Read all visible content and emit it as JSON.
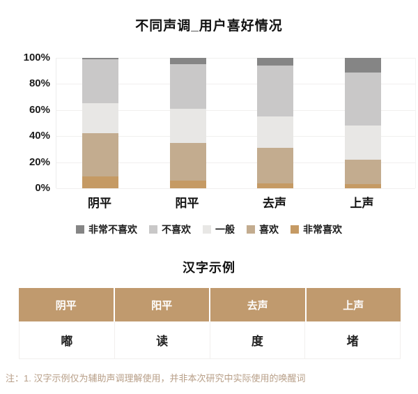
{
  "page": {
    "background": "#ffffff"
  },
  "chart_data": {
    "type": "bar",
    "subtype": "stacked-100-percent",
    "title": "不同声调_用户喜好情况",
    "categories": [
      "阴平",
      "阳平",
      "去声",
      "上声"
    ],
    "series": [
      {
        "name": "非常喜欢",
        "color": "#c59a64",
        "values": [
          9,
          6,
          4,
          3
        ]
      },
      {
        "name": "喜欢",
        "color": "#c3ac8f",
        "values": [
          33,
          29,
          27,
          19
        ]
      },
      {
        "name": "一般",
        "color": "#e8e7e5",
        "values": [
          23,
          26,
          24,
          26
        ]
      },
      {
        "name": "不喜欢",
        "color": "#c9c8c8",
        "values": [
          34,
          34,
          39,
          41
        ]
      },
      {
        "name": "非常不喜欢",
        "color": "#858585",
        "values": [
          1,
          5,
          6,
          11
        ]
      }
    ],
    "stack_order": "bottom-to-top",
    "unit": "%",
    "ylim": [
      0,
      100
    ],
    "y_ticks": [
      "100%",
      "80%",
      "60%",
      "40%",
      "20%",
      "0%"
    ],
    "grid": "faint-horizontal",
    "legend": {
      "position": "bottom",
      "entries": [
        {
          "label": "非常不喜欢",
          "color": "#858585"
        },
        {
          "label": "不喜欢",
          "color": "#c9c8c8"
        },
        {
          "label": "一般",
          "color": "#e8e7e5"
        },
        {
          "label": "喜欢",
          "color": "#c3ac8f"
        },
        {
          "label": "非常喜欢",
          "color": "#c59a64"
        }
      ]
    }
  },
  "example_table": {
    "title": "汉字示例",
    "headers": [
      "阴平",
      "阳平",
      "去声",
      "上声"
    ],
    "rows": [
      [
        "嘟",
        "读",
        "度",
        "堵"
      ]
    ],
    "header_bg": "#c09a6e",
    "header_text_color": "#ffffff"
  },
  "footnote": {
    "text": "注：1. 汉字示例仅为辅助声调理解使用，并非本次研究中实际使用的唤醒词",
    "color": "#b79e87"
  }
}
